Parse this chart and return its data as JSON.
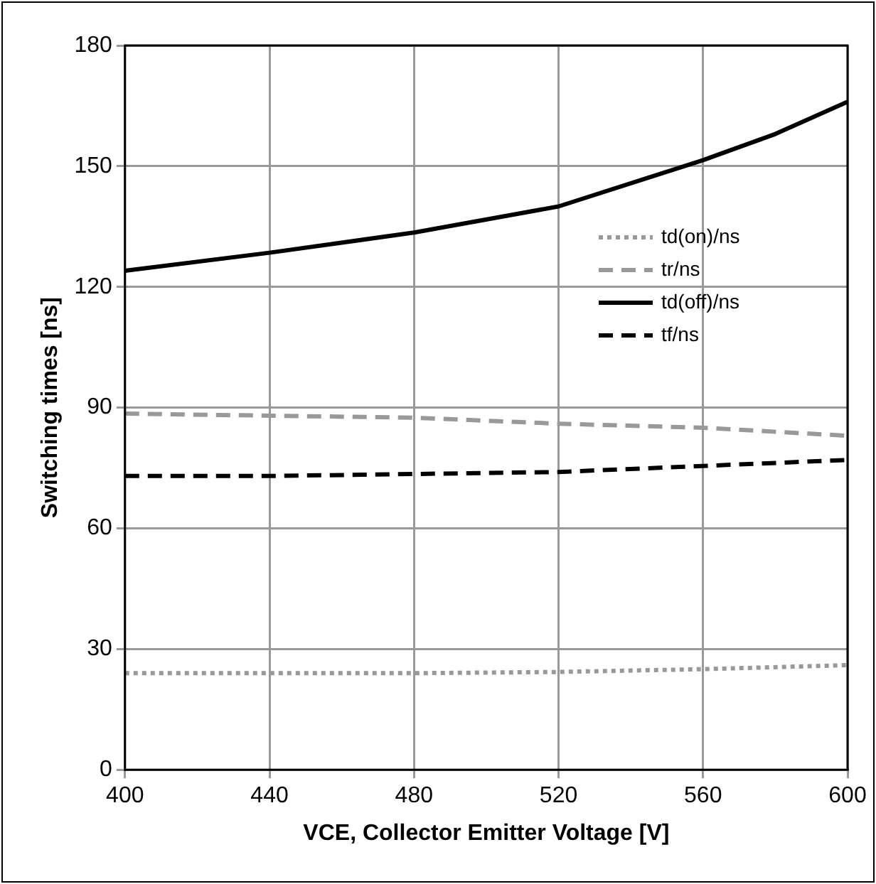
{
  "chart_data": {
    "type": "line",
    "xlabel": "VCE, Collector Emitter Voltage [V]",
    "ylabel": "Switching times [ns]",
    "xlim": [
      400,
      600
    ],
    "xticks": [
      400,
      440,
      480,
      520,
      560,
      600
    ],
    "ylim": [
      0,
      180
    ],
    "yticks": [
      0,
      30,
      60,
      90,
      120,
      150,
      180
    ],
    "grid": true,
    "legend": "right",
    "marker": "none",
    "series": [
      {
        "name": "td(on)/ns",
        "color": "#999999",
        "line_style": "dotted",
        "x": [
          400,
          440,
          480,
          520,
          560,
          600
        ],
        "values": [
          24,
          24,
          24,
          24.3,
          25,
          26
        ]
      },
      {
        "name": "tr/ns",
        "color": "#999999",
        "line_style": "dashed",
        "x": [
          400,
          440,
          480,
          520,
          560,
          600
        ],
        "values": [
          88.5,
          88,
          87.5,
          86,
          85,
          83
        ]
      },
      {
        "name": "td(off)/ns",
        "color": "#000000",
        "line_style": "solid",
        "x": [
          400,
          440,
          480,
          520,
          560,
          580,
          600
        ],
        "values": [
          124,
          128.5,
          133.5,
          140,
          151.5,
          158,
          166
        ]
      },
      {
        "name": "tf/ns",
        "color": "#000000",
        "line_style": "dashed",
        "x": [
          400,
          440,
          480,
          520,
          560,
          600
        ],
        "values": [
          73,
          73,
          73.5,
          74,
          75.5,
          77
        ]
      }
    ]
  }
}
